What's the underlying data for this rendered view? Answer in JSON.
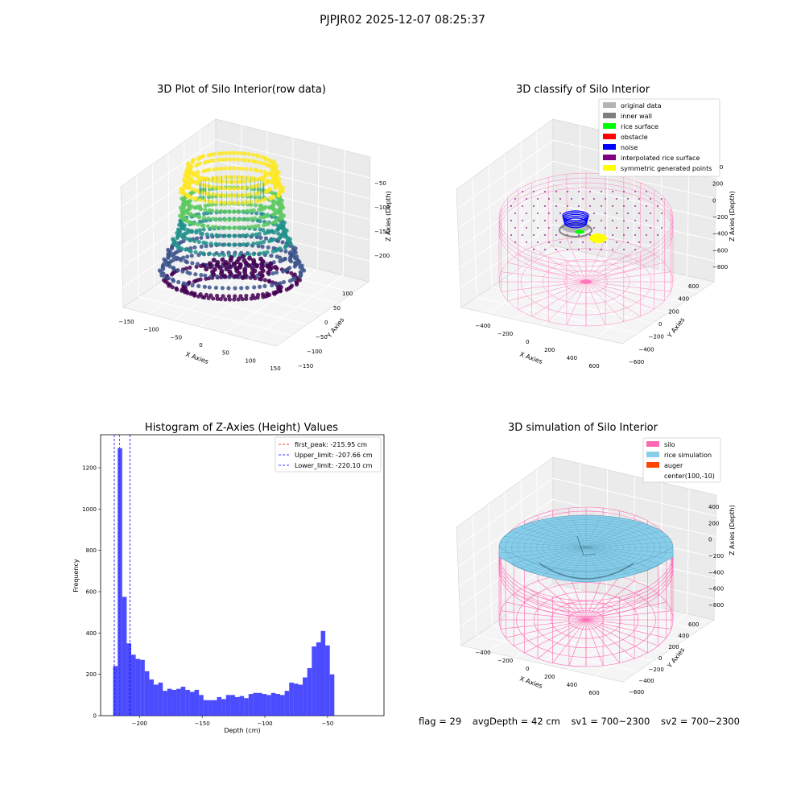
{
  "figure": {
    "suptitle": "PJPJR02 2025-12-07 08:25:37"
  },
  "panel_raw": {
    "title": "3D Plot of Silo Interior(row data)",
    "xlabel": "X Axies",
    "ylabel": "Y Axies",
    "zlabel": "Z Axies (Depth)",
    "x_ticks": [
      "−150",
      "−100",
      "−50",
      "0",
      "50",
      "100",
      "150"
    ],
    "y_ticks": [
      "−150",
      "−100",
      "−50",
      "0",
      "50",
      "100"
    ],
    "z_ticks": [
      "−50",
      "−100",
      "−150",
      "−200"
    ],
    "colormap": [
      "#440154",
      "#3b528b",
      "#21918c",
      "#5ec962",
      "#fde725"
    ]
  },
  "panel_classify": {
    "title": "3D classify of Silo Interior",
    "xlabel": "X Axies",
    "ylabel": "Y Axies",
    "zlabel": "Z Axies (Depth)",
    "x_ticks": [
      "−400",
      "−200",
      "0",
      "200",
      "400",
      "600"
    ],
    "y_ticks": [
      "−600",
      "−400",
      "−200",
      "0",
      "200",
      "400",
      "600"
    ],
    "z_ticks": [
      "400",
      "200",
      "0",
      "−200",
      "−400",
      "−600",
      "−800"
    ],
    "legend": [
      {
        "label": "original data",
        "color": "#b3b3b3"
      },
      {
        "label": "inner wall",
        "color": "#808080"
      },
      {
        "label": "rice surface",
        "color": "#00ff00"
      },
      {
        "label": "obstacle",
        "color": "#ff0000"
      },
      {
        "label": "noise",
        "color": "#0000ff"
      },
      {
        "label": "interpolated rice surface",
        "color": "#800080"
      },
      {
        "label": "symmetric generated points",
        "color": "#ffff00"
      }
    ],
    "wire_color": "#ff69b4"
  },
  "panel_sim": {
    "title": "3D simulation of Silo Interior",
    "xlabel": "X Axies",
    "ylabel": "Y Axies",
    "zlabel": "Z Axies (Depth)",
    "x_ticks": [
      "−400",
      "−200",
      "0",
      "200",
      "400",
      "600"
    ],
    "y_ticks": [
      "−600",
      "−400",
      "−200",
      "0",
      "200",
      "400",
      "600"
    ],
    "z_ticks": [
      "400",
      "200",
      "0",
      "−200",
      "−400",
      "−600",
      "−800"
    ],
    "legend": [
      {
        "label": "silo",
        "color": "#ff69b4"
      },
      {
        "label": "rice simulation",
        "color": "#87ceeb"
      },
      {
        "label": "auger",
        "color": "#ff4500"
      },
      {
        "label": "center(100,-10)",
        "color": ""
      }
    ]
  },
  "info": {
    "flag": "flag = 29",
    "avg_depth": "avgDepth = 42 cm",
    "sv1": "sv1 = 700~2300",
    "sv2": "sv2 = 700~2300"
  },
  "chart_data": {
    "type": "bar",
    "title": "Histogram of Z-Axies (Height) Values",
    "xlabel": "Depth (cm)",
    "ylabel": "Frequency",
    "xlim": [
      -231,
      -5
    ],
    "ylim": [
      0,
      1360
    ],
    "x_ticks": [
      -200,
      -150,
      -100,
      -50
    ],
    "x_tick_labels": [
      "−200",
      "−150",
      "−100",
      "−50"
    ],
    "y_ticks": [
      0,
      200,
      400,
      600,
      800,
      1000,
      1200
    ],
    "bar_color": "#0000ff",
    "bins_start": -221,
    "bin_width": 3.6,
    "values": [
      240,
      1295,
      575,
      350,
      295,
      275,
      270,
      215,
      175,
      150,
      160,
      120,
      130,
      125,
      130,
      140,
      125,
      115,
      125,
      100,
      75,
      75,
      75,
      90,
      80,
      100,
      100,
      90,
      95,
      85,
      105,
      110,
      110,
      105,
      100,
      110,
      105,
      100,
      120,
      160,
      155,
      150,
      185,
      230,
      335,
      355,
      410,
      340,
      200
    ],
    "lines": [
      {
        "label": "first_peak: -215.95 cm",
        "x": -215.95,
        "color": "#ff0000"
      },
      {
        "label": "Upper_limit: -207.66 cm",
        "x": -207.66,
        "color": "#0000ff"
      },
      {
        "label": "Lower_limit: -220.10 cm",
        "x": -220.1,
        "color": "#0000ff"
      }
    ],
    "legend_position": "upper right"
  }
}
